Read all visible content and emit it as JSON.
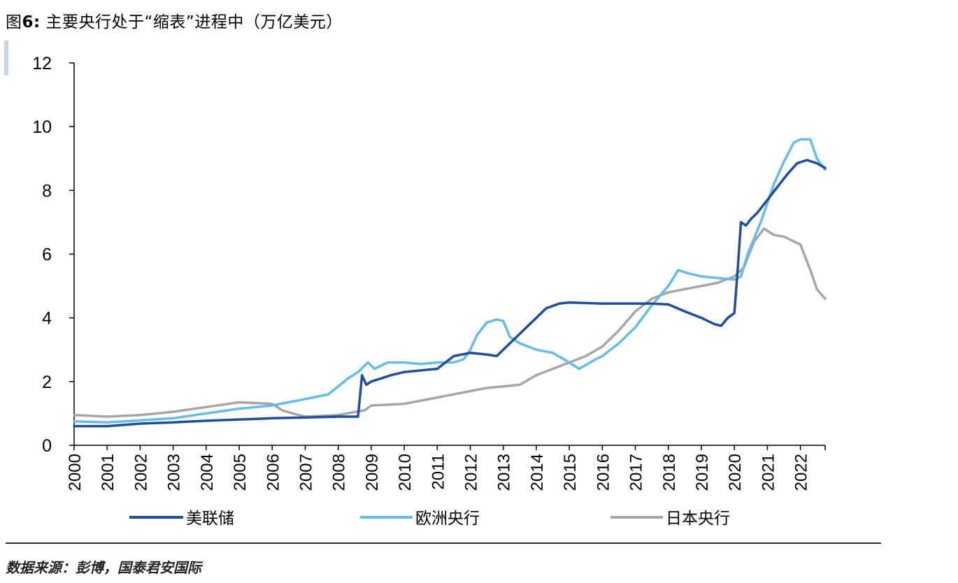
{
  "header": {
    "title_prefix": "图",
    "title_number": "6:",
    "title_rest": " 主要央行处于“缩表”进程中（万亿美元）"
  },
  "footer": {
    "source": "数据来源：彭博，国泰君安国际"
  },
  "colors": {
    "fed": "#1f4e9c",
    "ecb": "#64bde9",
    "boj": "#a6a6a6",
    "axis": "#000000"
  },
  "chart_data": {
    "type": "line",
    "x_tick_labels": [
      "2000",
      "2001",
      "2002",
      "2003",
      "2004",
      "2005",
      "2006",
      "2007",
      "2008",
      "2009",
      "2010",
      "2011",
      "2012",
      "2013",
      "2014",
      "2015",
      "2016",
      "2017",
      "2018",
      "2019",
      "2020",
      "2021",
      "2022"
    ],
    "y_tick_labels": [
      "0",
      "2",
      "4",
      "6",
      "8",
      "10",
      "12"
    ],
    "xlim": [
      2000.0,
      2022.75
    ],
    "ylim": [
      0,
      12
    ],
    "legend_position": "bottom",
    "series": [
      {
        "name": "美联储",
        "color": "#1f4e9c",
        "x": [
          2000.0,
          2001.0,
          2002.0,
          2003.0,
          2004.0,
          2005.0,
          2006.0,
          2007.0,
          2008.0,
          2008.6,
          2008.72,
          2008.85,
          2009.0,
          2009.3,
          2009.6,
          2010.0,
          2010.5,
          2011.0,
          2011.5,
          2012.0,
          2012.5,
          2012.8,
          2013.0,
          2013.5,
          2014.0,
          2014.3,
          2014.7,
          2015.0,
          2016.0,
          2017.0,
          2017.5,
          2018.0,
          2018.5,
          2019.0,
          2019.4,
          2019.6,
          2019.8,
          2020.0,
          2020.1,
          2020.2,
          2020.35,
          2020.5,
          2020.7,
          2021.0,
          2021.3,
          2021.6,
          2021.9,
          2022.2,
          2022.5,
          2022.75
        ],
        "y": [
          0.6,
          0.6,
          0.68,
          0.72,
          0.77,
          0.81,
          0.85,
          0.87,
          0.9,
          0.9,
          2.2,
          1.9,
          2.0,
          2.1,
          2.2,
          2.3,
          2.35,
          2.4,
          2.8,
          2.9,
          2.85,
          2.8,
          3.0,
          3.5,
          4.0,
          4.3,
          4.45,
          4.48,
          4.45,
          4.45,
          4.45,
          4.42,
          4.2,
          4.0,
          3.8,
          3.75,
          4.0,
          4.15,
          5.5,
          7.0,
          6.9,
          7.1,
          7.3,
          7.7,
          8.1,
          8.5,
          8.85,
          8.95,
          8.85,
          8.7
        ]
      },
      {
        "name": "欧洲央行",
        "color": "#64bde9",
        "x": [
          2000.0,
          2001.0,
          2002.0,
          2003.0,
          2004.0,
          2005.0,
          2006.0,
          2007.0,
          2007.7,
          2008.3,
          2008.6,
          2008.9,
          2009.1,
          2009.5,
          2010.0,
          2010.5,
          2011.0,
          2011.5,
          2011.8,
          2012.0,
          2012.2,
          2012.5,
          2012.8,
          2013.0,
          2013.2,
          2013.5,
          2014.0,
          2014.5,
          2015.0,
          2015.3,
          2015.8,
          2016.0,
          2016.5,
          2017.0,
          2017.5,
          2018.0,
          2018.3,
          2018.6,
          2019.0,
          2019.5,
          2020.0,
          2020.2,
          2020.4,
          2020.8,
          2021.2,
          2021.5,
          2021.8,
          2022.0,
          2022.3,
          2022.5,
          2022.75
        ],
        "y": [
          0.75,
          0.72,
          0.78,
          0.85,
          1.0,
          1.15,
          1.25,
          1.45,
          1.6,
          2.1,
          2.3,
          2.6,
          2.4,
          2.6,
          2.6,
          2.55,
          2.6,
          2.6,
          2.7,
          3.0,
          3.45,
          3.85,
          3.95,
          3.9,
          3.4,
          3.2,
          3.0,
          2.9,
          2.6,
          2.4,
          2.7,
          2.8,
          3.2,
          3.7,
          4.4,
          5.0,
          5.5,
          5.4,
          5.3,
          5.25,
          5.2,
          5.3,
          6.0,
          7.0,
          8.2,
          8.9,
          9.5,
          9.6,
          9.6,
          9.0,
          8.65
        ]
      },
      {
        "name": "日本央行",
        "color": "#a6a6a6",
        "x": [
          2000.0,
          2001.0,
          2002.0,
          2003.0,
          2004.0,
          2005.0,
          2006.0,
          2006.3,
          2006.8,
          2007.0,
          2008.0,
          2008.8,
          2009.0,
          2010.0,
          2011.0,
          2012.0,
          2012.5,
          2013.0,
          2013.5,
          2014.0,
          2014.5,
          2015.0,
          2015.5,
          2016.0,
          2016.5,
          2017.0,
          2017.5,
          2018.0,
          2018.5,
          2019.0,
          2019.5,
          2020.0,
          2020.3,
          2020.6,
          2020.9,
          2021.2,
          2021.5,
          2021.8,
          2022.0,
          2022.3,
          2022.5,
          2022.75
        ],
        "y": [
          0.95,
          0.9,
          0.95,
          1.05,
          1.2,
          1.35,
          1.3,
          1.1,
          0.95,
          0.9,
          0.95,
          1.1,
          1.25,
          1.3,
          1.5,
          1.7,
          1.8,
          1.85,
          1.9,
          2.2,
          2.4,
          2.6,
          2.8,
          3.1,
          3.6,
          4.2,
          4.6,
          4.8,
          4.9,
          5.0,
          5.1,
          5.3,
          5.6,
          6.4,
          6.8,
          6.6,
          6.55,
          6.4,
          6.3,
          5.5,
          4.9,
          4.6
        ]
      }
    ]
  }
}
